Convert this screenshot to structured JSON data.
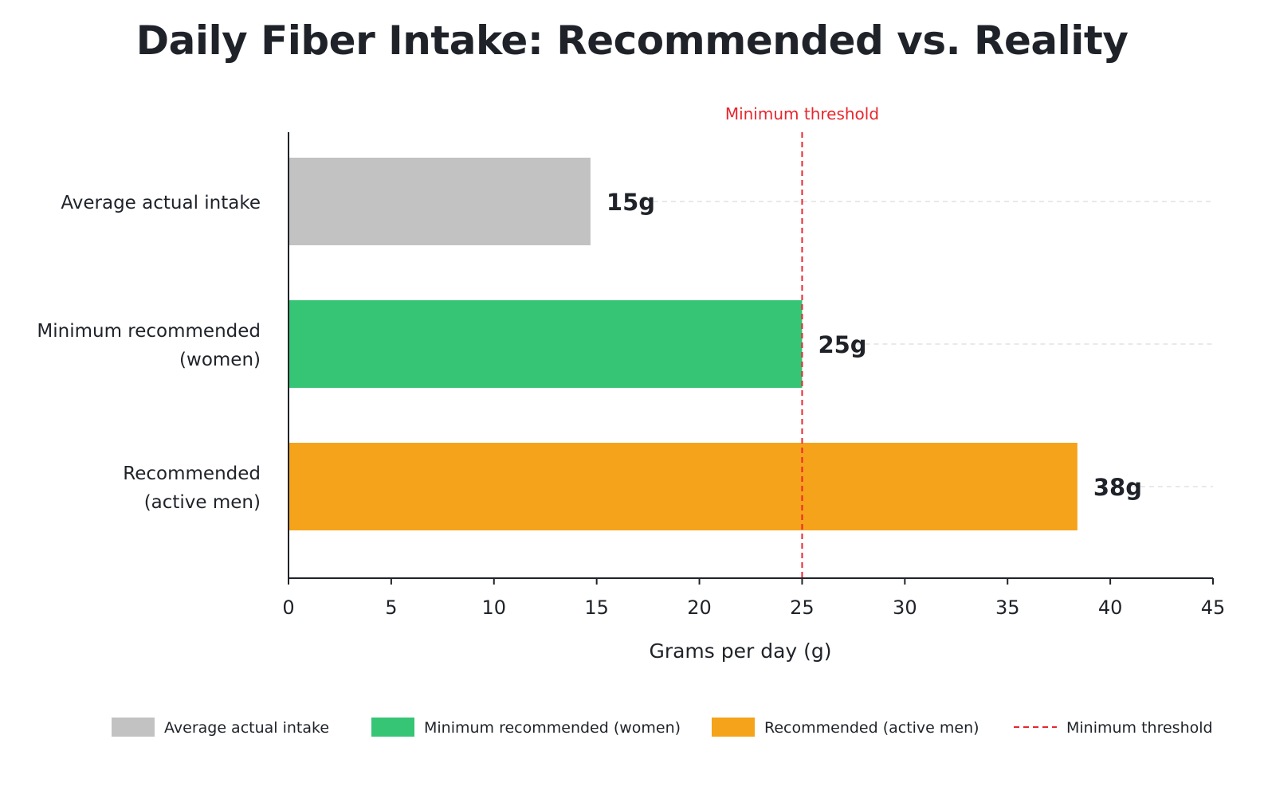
{
  "chart_data": {
    "type": "bar",
    "orientation": "horizontal",
    "title": "Daily Fiber Intake: Recommended vs. Reality",
    "xlabel": "Grams per day (g)",
    "ylabel": "",
    "xlim": [
      0,
      45
    ],
    "xticks": [
      0,
      5,
      10,
      15,
      20,
      25,
      30,
      35,
      40,
      45
    ],
    "grid": "dashed horizontal guide lines at bars",
    "categories": [
      [
        "Average actual intake"
      ],
      [
        "Minimum recommended",
        "(women)"
      ],
      [
        "Recommended",
        "(active men)"
      ]
    ],
    "values": [
      14.7,
      25,
      38.4
    ],
    "data_labels": [
      "15g",
      "25g",
      "38g"
    ],
    "colors": [
      "#c2c2c2",
      "#36c475",
      "#f5a31a"
    ],
    "reference_line": {
      "value": 25,
      "label": "Minimum threshold",
      "color": "#e8262d",
      "style": "dashed"
    },
    "legend": {
      "placement": "bottom",
      "entries": [
        {
          "label": "Average actual intake",
          "color": "#c2c2c2",
          "kind": "box"
        },
        {
          "label": "Minimum recommended (women)",
          "color": "#36c475",
          "kind": "box"
        },
        {
          "label": "Recommended (active men)",
          "color": "#f5a31a",
          "kind": "box"
        },
        {
          "label": "Minimum threshold",
          "color": "#e8262d",
          "kind": "dashed-line"
        }
      ]
    }
  }
}
